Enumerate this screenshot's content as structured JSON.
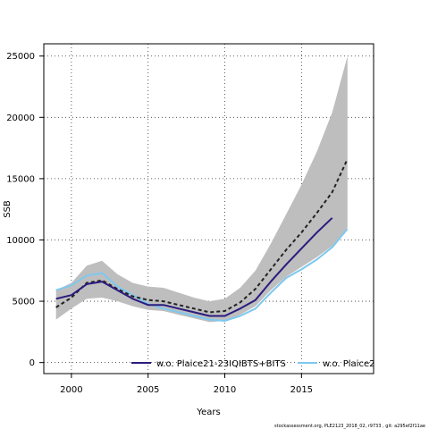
{
  "chart_data": {
    "type": "line",
    "xlabel": "Years",
    "ylabel": "SSB",
    "xlim": [
      1998.2,
      2019.7
    ],
    "ylim": [
      -900,
      26000
    ],
    "x_ticks": [
      2000,
      2005,
      2010,
      2015
    ],
    "y_ticks": [
      0,
      5000,
      10000,
      15000,
      20000,
      25000
    ],
    "grid": "dotted",
    "legend_position": "bottom",
    "x": [
      1999,
      2000,
      2001,
      2002,
      2003,
      2004,
      2005,
      2006,
      2007,
      2008,
      2009,
      2010,
      2011,
      2012,
      2013,
      2014,
      2015,
      2016,
      2017,
      2018
    ],
    "confidence_band": {
      "color": "#bebebe",
      "upper": [
        5900,
        6500,
        7900,
        8300,
        7200,
        6500,
        6200,
        6100,
        5700,
        5300,
        5000,
        5200,
        6100,
        7500,
        9700,
        12100,
        14500,
        17200,
        20400,
        25000
      ],
      "lower": [
        3500,
        4400,
        5200,
        5300,
        5000,
        4600,
        4300,
        4200,
        3900,
        3600,
        3300,
        3400,
        3900,
        4600,
        5900,
        7000,
        7800,
        8600,
        9500,
        11000
      ]
    },
    "series": [
      {
        "color": "#222222",
        "style": "dashed",
        "values": [
          4500,
          5300,
          6500,
          6700,
          6000,
          5400,
          5100,
          5000,
          4700,
          4400,
          4100,
          4200,
          4900,
          6000,
          7600,
          9200,
          10600,
          12200,
          13900,
          16600
        ]
      },
      {
        "name": "w.o. Plaice21-23IQIBTS+BITS",
        "color": "#2b1b7e",
        "style": "solid",
        "values": [
          5200,
          5500,
          6400,
          6600,
          5900,
          5200,
          4700,
          4700,
          4400,
          4100,
          3800,
          3800,
          4400,
          5100,
          6600,
          8000,
          9300,
          10600,
          11800,
          null
        ]
      },
      {
        "name": "w.o. Plaice2",
        "color": "#7ec8ee",
        "style": "solid",
        "values": [
          5900,
          6300,
          7100,
          7300,
          6200,
          5500,
          4800,
          4400,
          4100,
          3800,
          3500,
          3400,
          3800,
          4400,
          5700,
          6900,
          7600,
          8400,
          9400,
          10900
        ]
      }
    ]
  },
  "footer": "stockassessment.org, PLE2123_2018_02, r9733 , git: a295ef2f11ae"
}
